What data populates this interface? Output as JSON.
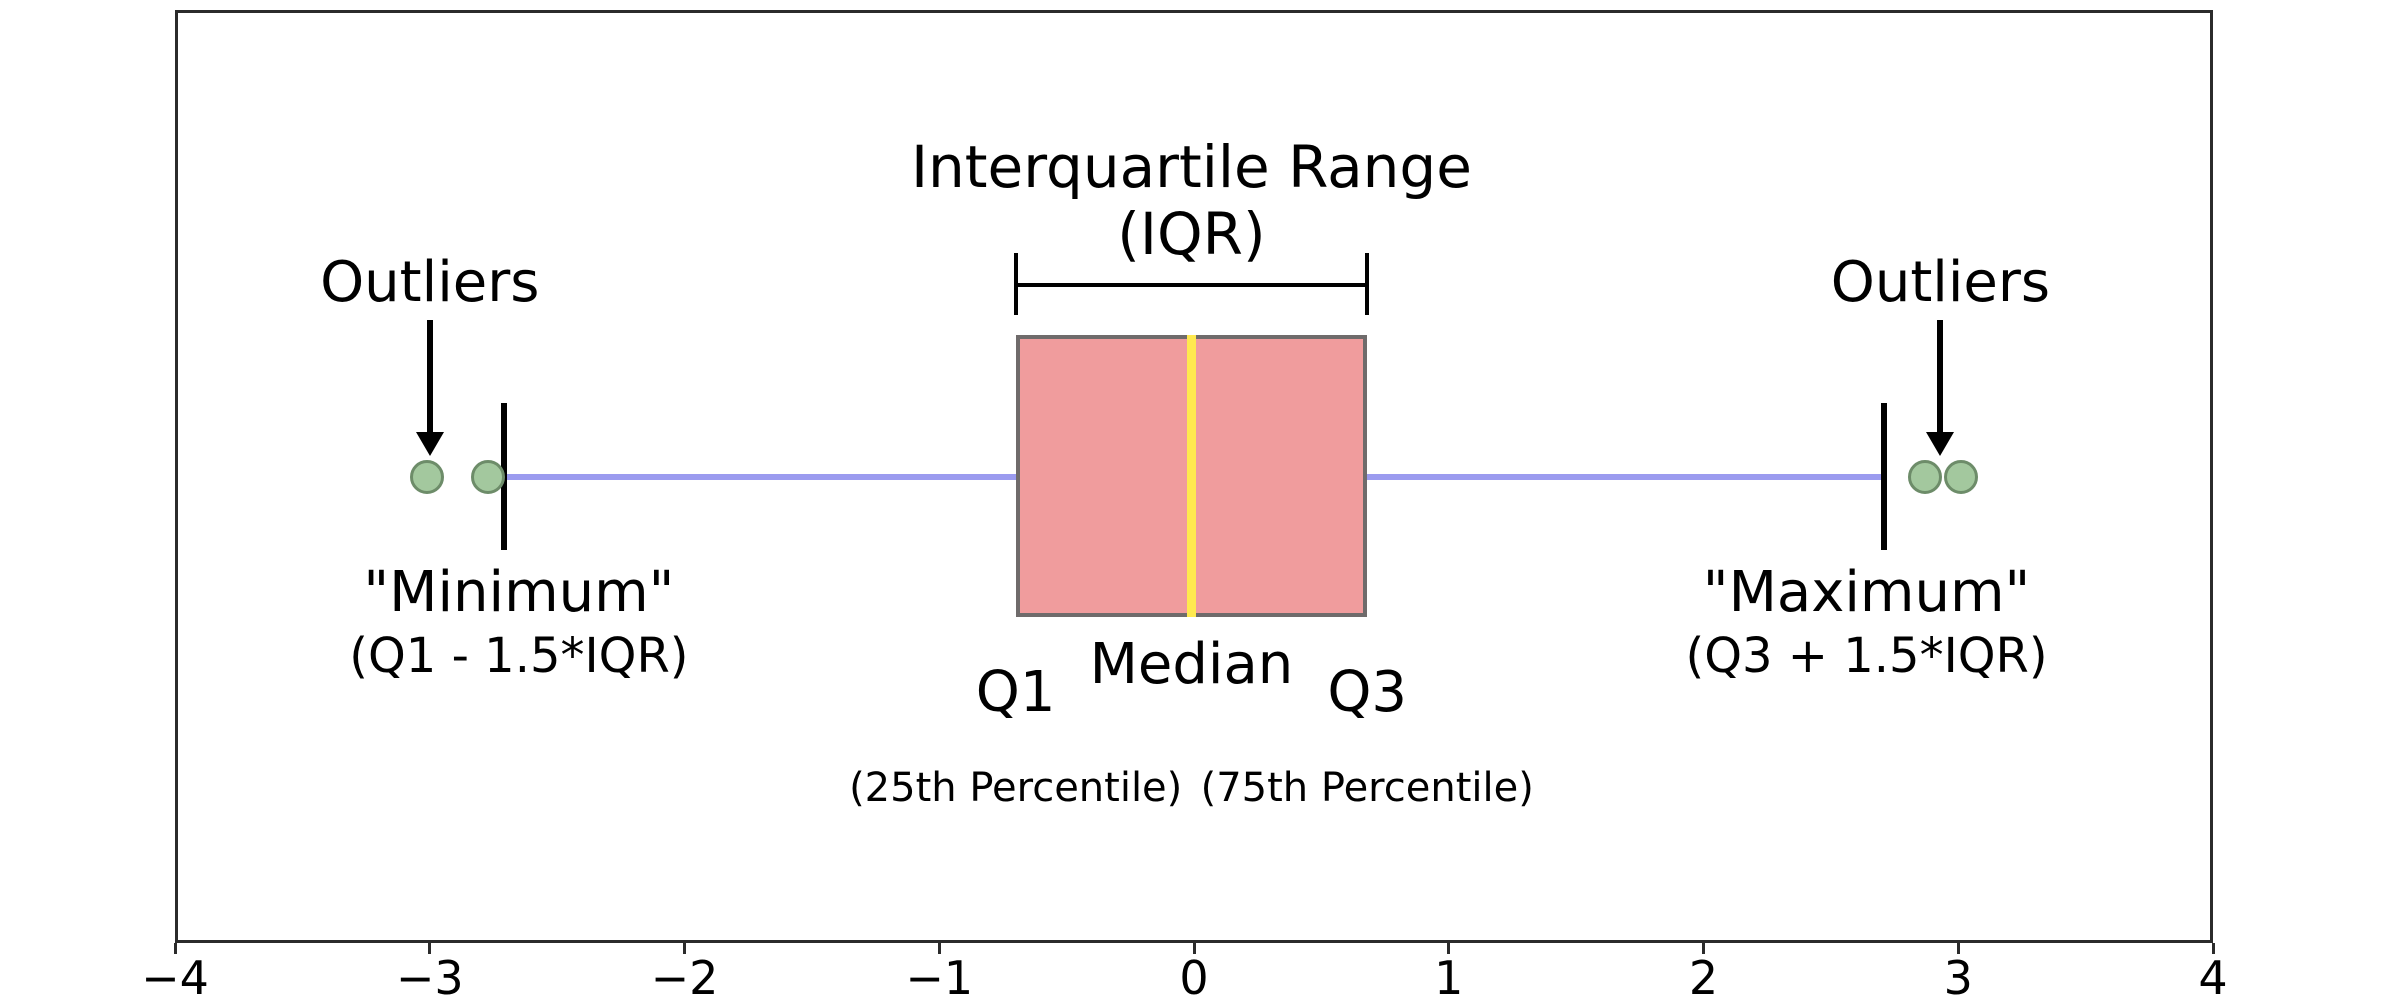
{
  "chart_data": {
    "type": "box",
    "orientation": "horizontal",
    "title": "Interquartile Range",
    "subtitle": "(IQR)",
    "grid": false,
    "legend": "none",
    "x_axis": {
      "min": -4,
      "max": 4,
      "ticks": [
        {
          "v": -4,
          "label": "−4"
        },
        {
          "v": -3,
          "label": "−3"
        },
        {
          "v": -2,
          "label": "−2"
        },
        {
          "v": -1,
          "label": "−1"
        },
        {
          "v": 0,
          "label": "0"
        },
        {
          "v": 1,
          "label": "1"
        },
        {
          "v": 2,
          "label": "2"
        },
        {
          "v": 3,
          "label": "3"
        },
        {
          "v": 4,
          "label": "4"
        }
      ]
    },
    "box": {
      "q1": -0.7,
      "median": -0.01,
      "q3": 0.68,
      "whisker_low": -2.71,
      "whisker_high": 2.71
    },
    "outliers_low": [
      -3.01,
      -2.77
    ],
    "outliers_high": [
      2.87,
      3.01
    ],
    "annotations": {
      "outliers_left": {
        "label": "Outliers",
        "x": -3.0
      },
      "outliers_right": {
        "label": "Outliers",
        "x": 2.93
      },
      "minimum": {
        "line1": "\"Minimum\"",
        "line2": "(Q1 - 1.5*IQR)",
        "x": -2.65
      },
      "maximum": {
        "line1": "\"Maximum\"",
        "line2": "(Q3 + 1.5*IQR)",
        "x": 2.64
      },
      "q1": {
        "label": "Q1",
        "sub": "(25th Percentile)"
      },
      "median": {
        "label": "Median"
      },
      "q3": {
        "label": "Q3",
        "sub": "(75th Percentile)"
      }
    },
    "colors": {
      "box_fill": "#f09c9d",
      "box_border": "#6f6b6b",
      "median_line": "#ffe94f",
      "whisker": "#9b9bef",
      "whisker_cap": "#000000",
      "outlier_fill": "#a3c89e",
      "outlier_border": "#6d8c69",
      "frame": "#2b2b2b",
      "text": "#000000"
    }
  }
}
